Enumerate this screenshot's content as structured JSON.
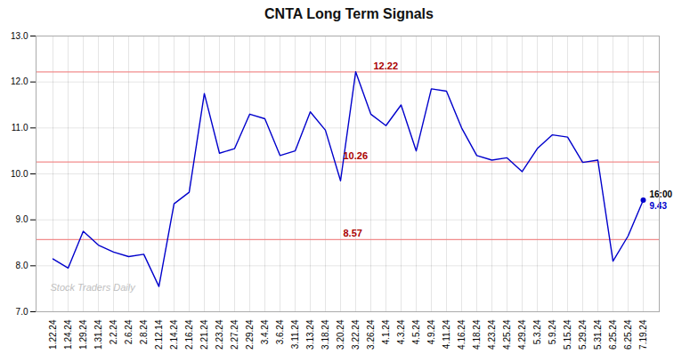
{
  "chart_data": {
    "type": "line",
    "title": "CNTA Long Term Signals",
    "categories": [
      "1.22.24",
      "1.24.24",
      "1.29.24",
      "1.31.24",
      "2.2.24",
      "2.6.24",
      "2.8.24",
      "2.12.14",
      "2.14.24",
      "2.16.24",
      "2.21.24",
      "2.23.24",
      "2.27.24",
      "2.29.24",
      "3.4.24",
      "3.6.24",
      "3.11.24",
      "3.13.24",
      "3.18.24",
      "3.20.24",
      "3.22.24",
      "3.26.24",
      "4.1.24",
      "4.3.24",
      "4.5.24",
      "4.9.24",
      "4.11.24",
      "4.16.24",
      "4.18.24",
      "4.23.24",
      "4.25.24",
      "4.29.24",
      "5.3.24",
      "5.9.24",
      "5.15.24",
      "5.29.24",
      "5.31.24",
      "6.25.24",
      "6.25.24",
      "7.19.24"
    ],
    "values": [
      8.15,
      7.95,
      8.75,
      8.45,
      8.3,
      8.2,
      8.25,
      7.55,
      9.35,
      9.6,
      11.75,
      10.45,
      10.55,
      11.3,
      11.2,
      10.4,
      10.5,
      11.35,
      10.95,
      9.85,
      12.22,
      11.3,
      11.05,
      11.5,
      10.5,
      11.85,
      11.8,
      11.0,
      10.4,
      10.3,
      10.35,
      10.05,
      10.55,
      10.85,
      10.8,
      10.25,
      10.3,
      8.1,
      8.65,
      9.43
    ],
    "color": "#0000cc",
    "ylim": [
      7,
      13
    ],
    "yticks": [
      7,
      8,
      9,
      10,
      11,
      12,
      13
    ],
    "grid": true,
    "hlines": {
      "values": [
        8.57,
        10.26,
        12.22
      ],
      "color": "#f08080",
      "label_color": "#aa0000"
    },
    "last_point": {
      "value": 9.43,
      "time_label": "16:00"
    },
    "watermark": "Stock Traders Daily"
  }
}
